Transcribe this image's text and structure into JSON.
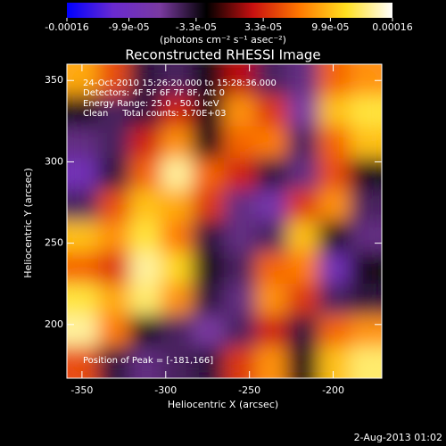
{
  "chart_data": {
    "type": "heatmap",
    "title": "Reconstructed RHESSI Image",
    "x_label": "Heliocentric X (arcsec)",
    "y_label": "Heliocentric Y (arcsec)",
    "xlim": [
      -359,
      -171
    ],
    "ylim": [
      167,
      360
    ],
    "xticks": [
      -350,
      -300,
      -250,
      -200
    ],
    "yticks": [
      200,
      250,
      300,
      350
    ],
    "z": [
      [
        9e-05,
        5e-05,
        -4e-05,
        -5e-05,
        -3e-05,
        2e-05,
        -5e-05,
        -6e-05,
        6e-05,
        8e-05
      ],
      [
        -3e-05,
        -5e-05,
        -4e-05,
        3e-05,
        -3e-05,
        8e-05,
        4e-05,
        -7e-05,
        0.0001,
        0.00012
      ],
      [
        -6e-05,
        -5e-05,
        3e-05,
        8e-05,
        -3e-05,
        6e-05,
        7e-05,
        -5e-05,
        6e-05,
        0.0001
      ],
      [
        -9e-05,
        -4e-05,
        6e-05,
        0.00014,
        6e-05,
        3e-05,
        -4e-05,
        -6e-05,
        5e-05,
        -3e-05
      ],
      [
        -5e-05,
        5e-05,
        0.0001,
        9e-05,
        4e-05,
        -6e-05,
        -8e-05,
        4e-05,
        8e-05,
        -5e-05
      ],
      [
        0.0001,
        8e-05,
        0.00012,
        7e-05,
        -4e-05,
        -6e-05,
        -5e-05,
        0.0001,
        -3e-05,
        -6e-05
      ],
      [
        6e-05,
        4e-05,
        0.00014,
        0.00011,
        -3e-05,
        -5e-05,
        6e-05,
        7e-05,
        -9e-05,
        -3e-05
      ],
      [
        0.00012,
        9e-05,
        0.00013,
        8e-05,
        -4e-05,
        -6e-05,
        8e-05,
        4e-05,
        -5e-05,
        -4e-05
      ],
      [
        0.00014,
        7e-05,
        -3e-05,
        -5e-05,
        -7e-05,
        -5e-05,
        3e-05,
        -4e-05,
        6e-05,
        8e-05
      ],
      [
        5e-05,
        -4e-05,
        -6e-05,
        -5e-05,
        -4e-05,
        4e-05,
        8e-05,
        -3e-05,
        0.0001,
        0.00013
      ]
    ],
    "colorbar": {
      "label": "(photons cm⁻² s⁻¹ asec⁻²)",
      "zlim": [
        -0.00016,
        0.00016
      ],
      "colors": [
        "#0000ff",
        "#6a2ad0",
        "#7a3aa0",
        "#000000",
        "#c81010",
        "#ff7800",
        "#ffe020",
        "#ffffff"
      ],
      "ticks": [
        -0.00016,
        {
          "value": -9.9e-05,
          "label": "-9.9e-05"
        },
        {
          "value": -3.3e-05,
          "label": "-3.3e-05"
        },
        {
          "value": 3.3e-05,
          "label": "3.3e-05"
        },
        {
          "value": 9.9e-05,
          "label": "9.9e-05"
        },
        0.00016
      ]
    },
    "annotations": [
      "24-Oct-2010 15:26:20.000 to 15:28:36.000",
      "Detectors: 4F 5F 6F 7F 8F, Att 0",
      "Energy Range: 25.0 - 50.0 keV",
      "Clean     Total counts: 3.70E+03",
      "Position of Peak = [-181,166]"
    ],
    "footer": "2-Aug-2013 01:02"
  }
}
